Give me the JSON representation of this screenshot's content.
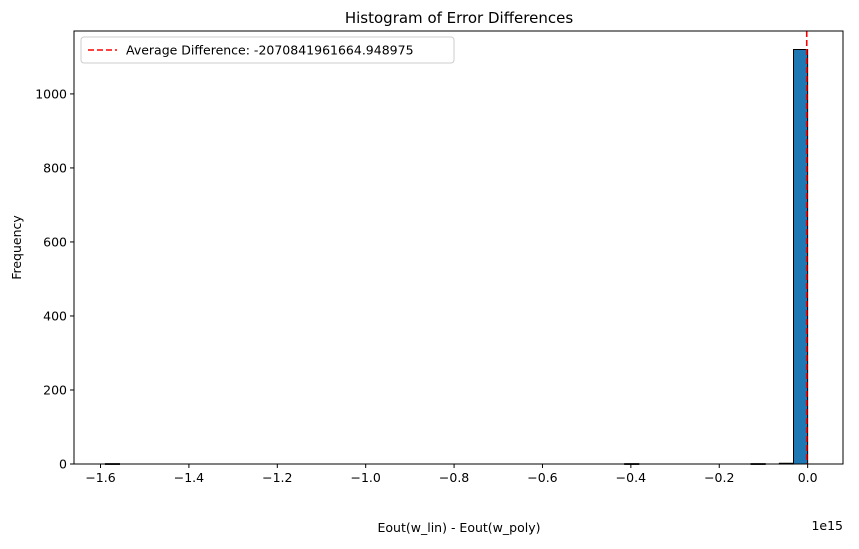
{
  "chart_data": {
    "type": "bar",
    "title": "Histogram of Error Differences",
    "xlabel": "Eout(w_lin) - Eout(w_poly)",
    "ylabel": "Frequency",
    "x_offset_label": "1e15",
    "x_scale_exponent": 15,
    "xlim": [
      -1.66,
      0.08
    ],
    "ylim": [
      0,
      1170
    ],
    "x_ticks": [
      -1.6,
      -1.4,
      -1.2,
      -1.0,
      -0.8,
      -0.6,
      -0.4,
      -0.2,
      0.0
    ],
    "x_tick_labels": [
      "−1.6",
      "−1.4",
      "−1.2",
      "−1.0",
      "−0.8",
      "−0.6",
      "−0.4",
      "−0.2",
      "0.0"
    ],
    "y_ticks": [
      0,
      200,
      400,
      600,
      800,
      1000
    ],
    "y_tick_labels": [
      "0",
      "200",
      "400",
      "600",
      "800",
      "1000"
    ],
    "bin_edges_note": "50 equal-width bins spanning the data range",
    "bins": [
      {
        "x0": -1.589,
        "x1": -1.557,
        "count": 1
      },
      {
        "x0": -0.414,
        "x1": -0.382,
        "count": 1
      },
      {
        "x0": -0.128,
        "x1": -0.096,
        "count": 1
      },
      {
        "x0": -0.064,
        "x1": -0.032,
        "count": 2
      },
      {
        "x0": -0.032,
        "x1": 0.0,
        "count": 1120
      }
    ],
    "mean_line": {
      "value": -0.002070841961664949,
      "label": "Average Difference: -2070841961664.948975",
      "color": "#ff0000",
      "style": "dashed"
    },
    "bar_color": "#1f77b4",
    "bar_edge_color": "#000000",
    "legend_position": "upper-left",
    "grid": false
  }
}
